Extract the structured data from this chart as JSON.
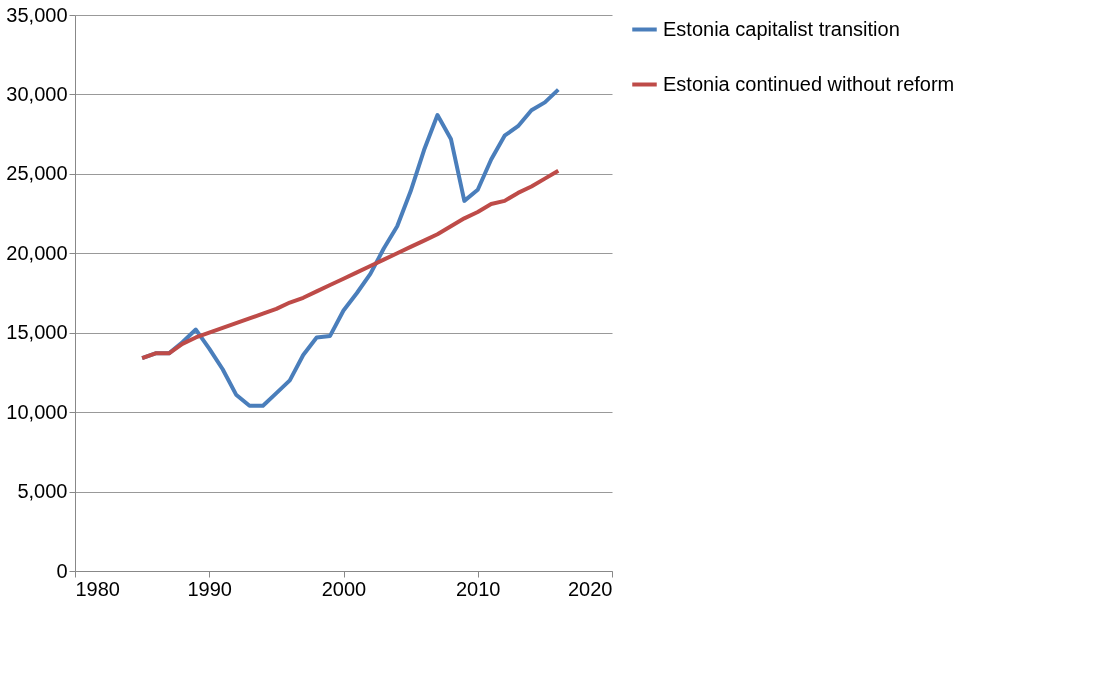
{
  "chart_data": {
    "type": "line",
    "x": [
      1985,
      1986,
      1987,
      1988,
      1989,
      1990,
      1991,
      1992,
      1993,
      1994,
      1995,
      1996,
      1997,
      1998,
      1999,
      2000,
      2001,
      2002,
      2003,
      2004,
      2005,
      2006,
      2007,
      2008,
      2009,
      2010,
      2011,
      2012,
      2013,
      2014,
      2015,
      2016
    ],
    "series": [
      {
        "name": "Estonia capitalist transition",
        "color": "#4a7ebb",
        "values": [
          13400,
          13700,
          13700,
          14400,
          15200,
          14000,
          12700,
          11100,
          10400,
          10400,
          11200,
          12000,
          13600,
          14700,
          14800,
          16400,
          17500,
          18700,
          20300,
          21700,
          23900,
          26500,
          28700,
          27200,
          23300,
          24000,
          25900,
          27400,
          28000,
          29000,
          29500,
          30300
        ]
      },
      {
        "name": "Estonia continued without reform",
        "color": "#be4b48",
        "values": [
          13400,
          13700,
          13700,
          14300,
          14700,
          15000,
          15300,
          15600,
          15900,
          16200,
          16500,
          16900,
          17200,
          17600,
          18000,
          18400,
          18800,
          19200,
          19600,
          20000,
          20400,
          20800,
          21200,
          21700,
          22200,
          22600,
          23100,
          23300,
          23800,
          24200,
          24700,
          25200
        ]
      }
    ],
    "xlim": [
      1980,
      2020
    ],
    "xticks": [
      1980,
      1990,
      2000,
      2010,
      2020
    ],
    "ylim": [
      0,
      35000
    ],
    "yticks": [
      0,
      {
        "value": 5000,
        "label": "5,000"
      },
      {
        "value": 10000,
        "label": "10,000"
      },
      {
        "value": 15000,
        "label": "15,000"
      },
      {
        "value": 20000,
        "label": "20,000"
      },
      {
        "value": 25000,
        "label": "25,000"
      },
      {
        "value": 30000,
        "label": "30,000"
      },
      {
        "value": 35000,
        "label": "35,000"
      }
    ],
    "grid": "y",
    "legend": "right",
    "marker": "none",
    "line_style": "solid"
  }
}
